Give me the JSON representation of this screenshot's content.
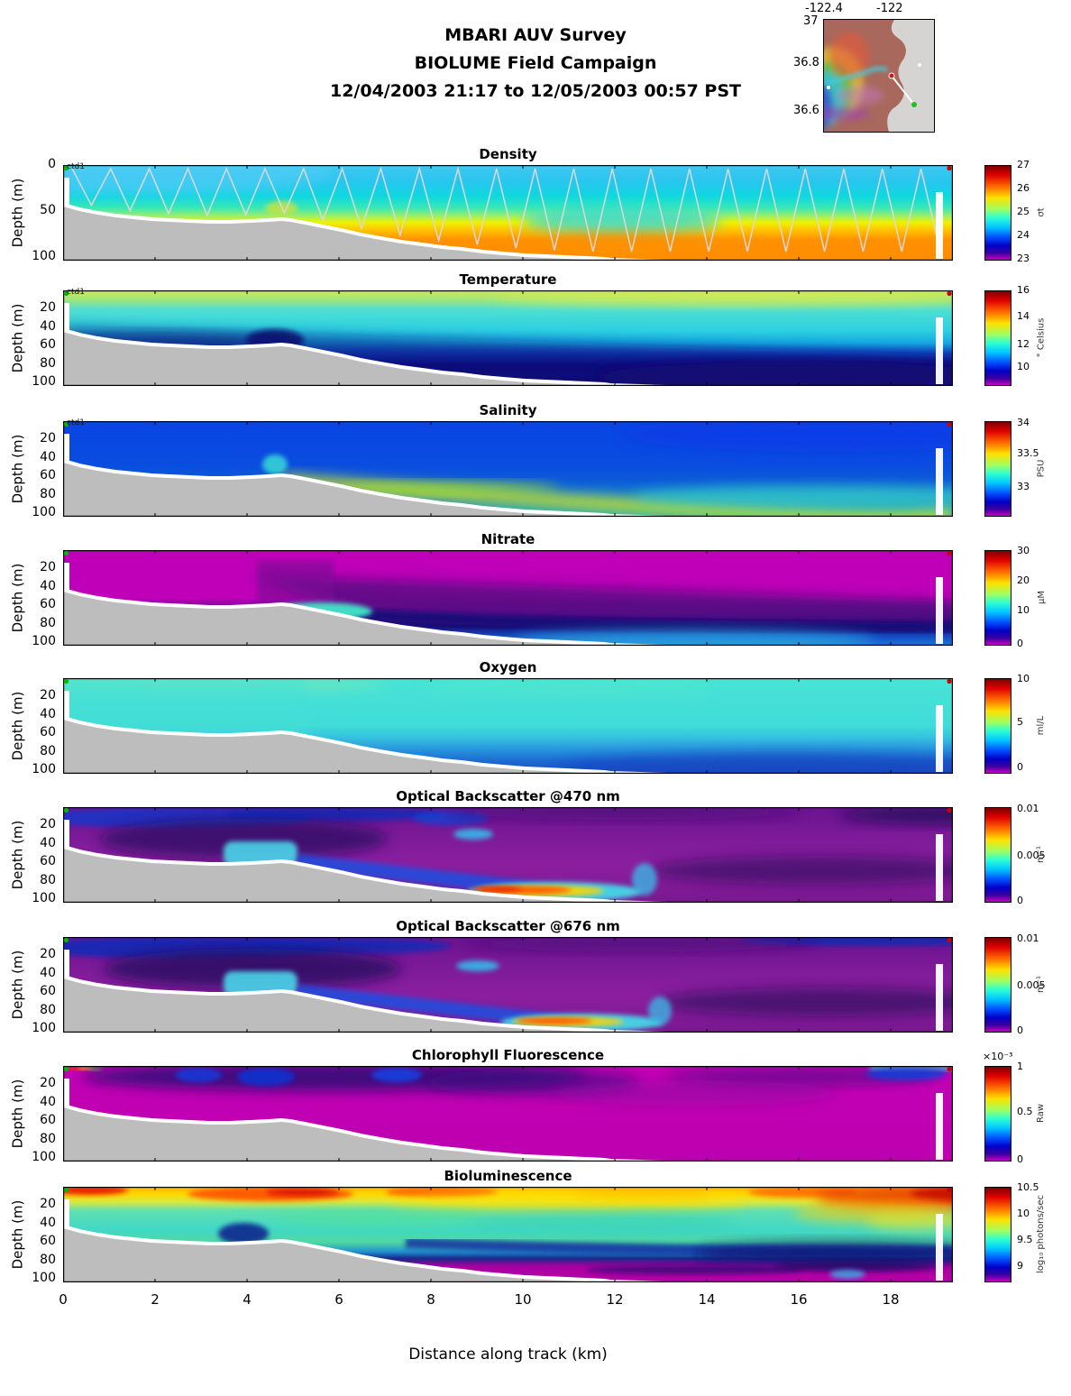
{
  "header": {
    "line1": "MBARI AUV Survey",
    "line2": "BIOLUME Field Campaign",
    "line3": "12/04/2003 21:17  to 12/05/2003 00:57 PST"
  },
  "map": {
    "xticks": [
      "-122.4",
      "-122"
    ],
    "yticks": [
      "37",
      "36.8",
      "36.6"
    ],
    "markers": {
      "start": "green-dot",
      "end": "red-dot"
    }
  },
  "axis": {
    "ylabel": "Depth (m)",
    "xlabel": "Distance along track (km)",
    "xticks": [
      "0",
      "2",
      "4",
      "6",
      "8",
      "10",
      "12",
      "14",
      "16",
      "18"
    ]
  },
  "panels": [
    {
      "title": "Density",
      "track_label": "ctd1",
      "yticks": [
        "0",
        "50",
        "100"
      ],
      "colorbar": {
        "ticks": [
          "27",
          "26",
          "25",
          "24",
          "23"
        ],
        "unit": "σt"
      }
    },
    {
      "title": "Temperature",
      "track_label": "ctd1",
      "yticks": [
        "20",
        "40",
        "60",
        "80",
        "100"
      ],
      "colorbar": {
        "ticks": [
          "16",
          "14",
          "12",
          "10"
        ],
        "unit": "° Celsius"
      }
    },
    {
      "title": "Salinity",
      "track_label": "ctd1",
      "yticks": [
        "20",
        "40",
        "60",
        "80",
        "100"
      ],
      "colorbar": {
        "ticks": [
          "34",
          "33.5",
          "33"
        ],
        "unit": "PSU"
      }
    },
    {
      "title": "Nitrate",
      "track_label": "",
      "yticks": [
        "20",
        "40",
        "60",
        "80",
        "100"
      ],
      "colorbar": {
        "ticks": [
          "30",
          "20",
          "10",
          "0"
        ],
        "unit": "μM"
      }
    },
    {
      "title": "Oxygen",
      "track_label": "",
      "yticks": [
        "20",
        "40",
        "60",
        "80",
        "100"
      ],
      "colorbar": {
        "ticks": [
          "10",
          "5",
          "0"
        ],
        "unit": "ml/L"
      }
    },
    {
      "title": "Optical Backscatter @470 nm",
      "track_label": "",
      "yticks": [
        "20",
        "40",
        "60",
        "80",
        "100"
      ],
      "colorbar": {
        "ticks": [
          "0.01",
          "0.005",
          "0"
        ],
        "unit": "m⁻¹"
      }
    },
    {
      "title": "Optical Backscatter @676 nm",
      "track_label": "",
      "yticks": [
        "20",
        "40",
        "60",
        "80",
        "100"
      ],
      "colorbar": {
        "ticks": [
          "0.01",
          "0.005",
          "0"
        ],
        "unit": "m⁻¹"
      }
    },
    {
      "title": "Chlorophyll Fluorescence",
      "track_label": "",
      "yticks": [
        "20",
        "40",
        "60",
        "80",
        "100"
      ],
      "colorbar": {
        "ticks": [
          "1",
          "0.5",
          "0"
        ],
        "unit": "Raw",
        "exp": "×10⁻³"
      }
    },
    {
      "title": "Bioluminescence",
      "track_label": "",
      "yticks": [
        "20",
        "40",
        "60",
        "80",
        "100"
      ],
      "colorbar": {
        "ticks": [
          "10.5",
          "10",
          "9.5",
          "9"
        ],
        "unit": "log₁₀ photons/sec"
      }
    }
  ],
  "chart_data": [
    {
      "type": "heatmap",
      "title": "Density",
      "xlabel": "Distance along track (km)",
      "ylabel": "Depth (m)",
      "x_range": [
        0,
        19.3
      ],
      "y_range": [
        0,
        105
      ],
      "colorbar": {
        "min": 23,
        "max": 27,
        "ticks": [
          27,
          26,
          25,
          24,
          23
        ],
        "unit": "sigma-t"
      },
      "features": "light blue (~24) surface layer, cyan-green mid, yellow-orange (~26) dense layer from ~60 m deepening seaward; white sawtooth AUV track overlay; gray seafloor wedge shoaling to ~40 m at 0 km"
    },
    {
      "type": "heatmap",
      "title": "Temperature",
      "x_range": [
        0,
        19.3
      ],
      "y_range": [
        0,
        105
      ],
      "colorbar": {
        "min": 9,
        "max": 16,
        "ticks": [
          16,
          14,
          12,
          10
        ],
        "unit": "deg Celsius"
      },
      "features": "warm ~14-15 C yellow-green surface band, cyan 12 C mid-layer, cold <10 C navy water below ~50-70 m thermocline deepening offshore"
    },
    {
      "type": "heatmap",
      "title": "Salinity",
      "x_range": [
        0,
        19.3
      ],
      "y_range": [
        0,
        105
      ],
      "colorbar": {
        "min": 32.6,
        "max": 34,
        "ticks": [
          34,
          33.5,
          33
        ],
        "unit": "PSU"
      },
      "features": "uniform ~33.2 blue upper ocean, fresher yellow-green (~33.6?) band hugging the seafloor slope, cyan deep layer at right"
    },
    {
      "type": "heatmap",
      "title": "Nitrate",
      "x_range": [
        0,
        19.3
      ],
      "y_range": [
        0,
        105
      ],
      "colorbar": {
        "min": 0,
        "max": 30,
        "ticks": [
          30,
          20,
          10,
          0
        ],
        "unit": "uM"
      },
      "features": "near-zero (magenta) surface, dark-purple low values mid-depth, nitrate increasing (blue ~10, cyan ~15) toward bottom; cyan patch near floor at 4-6 km"
    },
    {
      "type": "heatmap",
      "title": "Oxygen",
      "x_range": [
        0,
        19.3
      ],
      "y_range": [
        0,
        105
      ],
      "colorbar": {
        "min": 0,
        "max": 10,
        "ticks": [
          10,
          5,
          0
        ],
        "unit": "ml/L"
      },
      "features": "cyan ~5-6 ml/L upper layer, decreasing to blue ~3-4 ml/L below 60-80 m, lowest at bottom right"
    },
    {
      "type": "heatmap",
      "title": "Optical Backscatter @470 nm",
      "x_range": [
        0,
        19.3
      ],
      "y_range": [
        0,
        105
      ],
      "colorbar": {
        "min": 0,
        "max": 0.01,
        "ticks": [
          0.01,
          0.005,
          0
        ],
        "unit": "1/m"
      },
      "features": "purple background ~0.002, blue/cyan turbid layers inshore 0-6 km, strong red-orange bottom nepheloid layer (~0.01) at 9-12 km near 90-100 m"
    },
    {
      "type": "heatmap",
      "title": "Optical Backscatter @676 nm",
      "x_range": [
        0,
        19.3
      ],
      "y_range": [
        0,
        105
      ],
      "colorbar": {
        "min": 0,
        "max": 0.01,
        "ticks": [
          0.01,
          0.005,
          0
        ],
        "unit": "1/m"
      },
      "features": "same pattern as 470 nm: inshore blue turbidity, bottom orange-red high-scatter streak near 10-12 km"
    },
    {
      "type": "heatmap",
      "title": "Chlorophyll Fluorescence",
      "x_range": [
        0,
        19.3
      ],
      "y_range": [
        0,
        105
      ],
      "colorbar": {
        "min": 0,
        "max": 0.001,
        "ticks": [
          0.001,
          0.0005,
          0
        ],
        "unit": "Raw",
        "scale_note": "x10^-3"
      },
      "features": "mostly magenta near zero; dark blue/navy chlorophyll maximum blobs in upper 25 m between 1.5-9 km; small high patches at far left and far right surface"
    },
    {
      "type": "heatmap",
      "title": "Bioluminescence",
      "x_range": [
        0,
        19.3
      ],
      "y_range": [
        0,
        105
      ],
      "colorbar": {
        "min": 9,
        "max": 10.5,
        "ticks": [
          10.5,
          10,
          9.5,
          9
        ],
        "unit": "log10 photons/sec"
      },
      "features": "bright red-orange (~10.3) surface band, mottled cyan-green (~9.7) mid-water, sharp drop to magenta (<9.1) below ~60-75 m with navy streaks"
    }
  ]
}
